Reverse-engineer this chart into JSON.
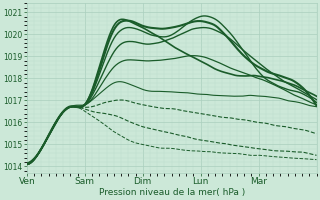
{
  "xlabel": "Pression niveau de la mer( hPa )",
  "ylim": [
    1013.7,
    1021.4
  ],
  "yticks": [
    1014,
    1015,
    1016,
    1017,
    1018,
    1019,
    1020,
    1021
  ],
  "day_labels": [
    "Ven",
    "Sam",
    "Dim",
    "Lun",
    "Mar"
  ],
  "day_positions": [
    0,
    24,
    48,
    72,
    96
  ],
  "total_hours": 120,
  "background_color": "#cce8d8",
  "grid_color_major": "#aacfbe",
  "grid_color_minor": "#bddece",
  "line_color": "#1a5c2a",
  "font_color": "#1a5c2a",
  "series": [
    {
      "points": [
        [
          0,
          1014.1
        ],
        [
          6,
          1014.8
        ],
        [
          12,
          1016.0
        ],
        [
          18,
          1016.7
        ],
        [
          24,
          1016.8
        ],
        [
          36,
          1020.4
        ],
        [
          40,
          1020.7
        ],
        [
          44,
          1020.5
        ],
        [
          48,
          1020.3
        ],
        [
          60,
          1019.5
        ],
        [
          72,
          1018.8
        ],
        [
          84,
          1018.2
        ],
        [
          96,
          1018.1
        ],
        [
          108,
          1017.8
        ],
        [
          120,
          1017.2
        ]
      ],
      "lw": 1.2,
      "ls": "-"
    },
    {
      "points": [
        [
          0,
          1014.1
        ],
        [
          6,
          1014.8
        ],
        [
          12,
          1016.0
        ],
        [
          18,
          1016.7
        ],
        [
          24,
          1016.8
        ],
        [
          36,
          1020.2
        ],
        [
          42,
          1020.6
        ],
        [
          48,
          1020.4
        ],
        [
          60,
          1020.3
        ],
        [
          72,
          1020.6
        ],
        [
          80,
          1020.2
        ],
        [
          90,
          1019.0
        ],
        [
          96,
          1018.5
        ],
        [
          108,
          1018.0
        ],
        [
          120,
          1016.8
        ]
      ],
      "lw": 1.5,
      "ls": "-"
    },
    {
      "points": [
        [
          0,
          1014.1
        ],
        [
          6,
          1014.8
        ],
        [
          12,
          1016.0
        ],
        [
          18,
          1016.7
        ],
        [
          24,
          1016.8
        ],
        [
          36,
          1019.8
        ],
        [
          48,
          1020.1
        ],
        [
          60,
          1020.0
        ],
        [
          72,
          1020.8
        ],
        [
          80,
          1020.5
        ],
        [
          90,
          1019.2
        ],
        [
          96,
          1018.3
        ],
        [
          108,
          1017.5
        ],
        [
          120,
          1016.9
        ]
      ],
      "lw": 1.0,
      "ls": "-"
    },
    {
      "points": [
        [
          0,
          1014.1
        ],
        [
          6,
          1014.8
        ],
        [
          12,
          1016.0
        ],
        [
          18,
          1016.7
        ],
        [
          24,
          1016.8
        ],
        [
          36,
          1019.2
        ],
        [
          48,
          1019.6
        ],
        [
          60,
          1019.8
        ],
        [
          72,
          1020.3
        ],
        [
          84,
          1019.8
        ],
        [
          96,
          1018.7
        ],
        [
          108,
          1017.8
        ],
        [
          120,
          1017.0
        ]
      ],
      "lw": 1.0,
      "ls": "-"
    },
    {
      "points": [
        [
          0,
          1014.1
        ],
        [
          6,
          1014.8
        ],
        [
          12,
          1016.0
        ],
        [
          18,
          1016.7
        ],
        [
          24,
          1016.8
        ],
        [
          36,
          1018.5
        ],
        [
          48,
          1018.8
        ],
        [
          60,
          1018.9
        ],
        [
          72,
          1019.0
        ],
        [
          84,
          1018.5
        ],
        [
          96,
          1018.0
        ],
        [
          108,
          1017.4
        ],
        [
          120,
          1016.8
        ]
      ],
      "lw": 0.9,
      "ls": "-"
    },
    {
      "points": [
        [
          0,
          1014.1
        ],
        [
          6,
          1014.8
        ],
        [
          12,
          1016.0
        ],
        [
          18,
          1016.7
        ],
        [
          24,
          1016.8
        ],
        [
          36,
          1017.8
        ],
        [
          48,
          1017.5
        ],
        [
          60,
          1017.4
        ],
        [
          72,
          1017.3
        ],
        [
          84,
          1017.2
        ],
        [
          96,
          1017.2
        ],
        [
          108,
          1017.0
        ],
        [
          120,
          1016.7
        ]
      ],
      "lw": 0.8,
      "ls": "-"
    },
    {
      "points": [
        [
          0,
          1014.1
        ],
        [
          6,
          1014.8
        ],
        [
          12,
          1016.0
        ],
        [
          18,
          1016.7
        ],
        [
          24,
          1016.7
        ],
        [
          36,
          1017.0
        ],
        [
          48,
          1016.8
        ],
        [
          60,
          1016.6
        ],
        [
          72,
          1016.4
        ],
        [
          84,
          1016.2
        ],
        [
          96,
          1016.0
        ],
        [
          108,
          1015.8
        ],
        [
          120,
          1015.5
        ]
      ],
      "lw": 0.8,
      "ls": "--"
    },
    {
      "points": [
        [
          0,
          1014.1
        ],
        [
          6,
          1014.8
        ],
        [
          12,
          1016.0
        ],
        [
          18,
          1016.7
        ],
        [
          24,
          1016.6
        ],
        [
          36,
          1016.3
        ],
        [
          48,
          1015.8
        ],
        [
          60,
          1015.5
        ],
        [
          72,
          1015.2
        ],
        [
          84,
          1015.0
        ],
        [
          96,
          1014.8
        ],
        [
          108,
          1014.7
        ],
        [
          120,
          1014.5
        ]
      ],
      "lw": 0.8,
      "ls": "--"
    },
    {
      "points": [
        [
          0,
          1014.1
        ],
        [
          6,
          1014.8
        ],
        [
          12,
          1016.0
        ],
        [
          18,
          1016.7
        ],
        [
          24,
          1016.5
        ],
        [
          36,
          1015.6
        ],
        [
          48,
          1015.0
        ],
        [
          60,
          1014.8
        ],
        [
          72,
          1014.7
        ],
        [
          84,
          1014.6
        ],
        [
          96,
          1014.5
        ],
        [
          108,
          1014.4
        ],
        [
          120,
          1014.3
        ]
      ],
      "lw": 0.7,
      "ls": "--"
    }
  ]
}
